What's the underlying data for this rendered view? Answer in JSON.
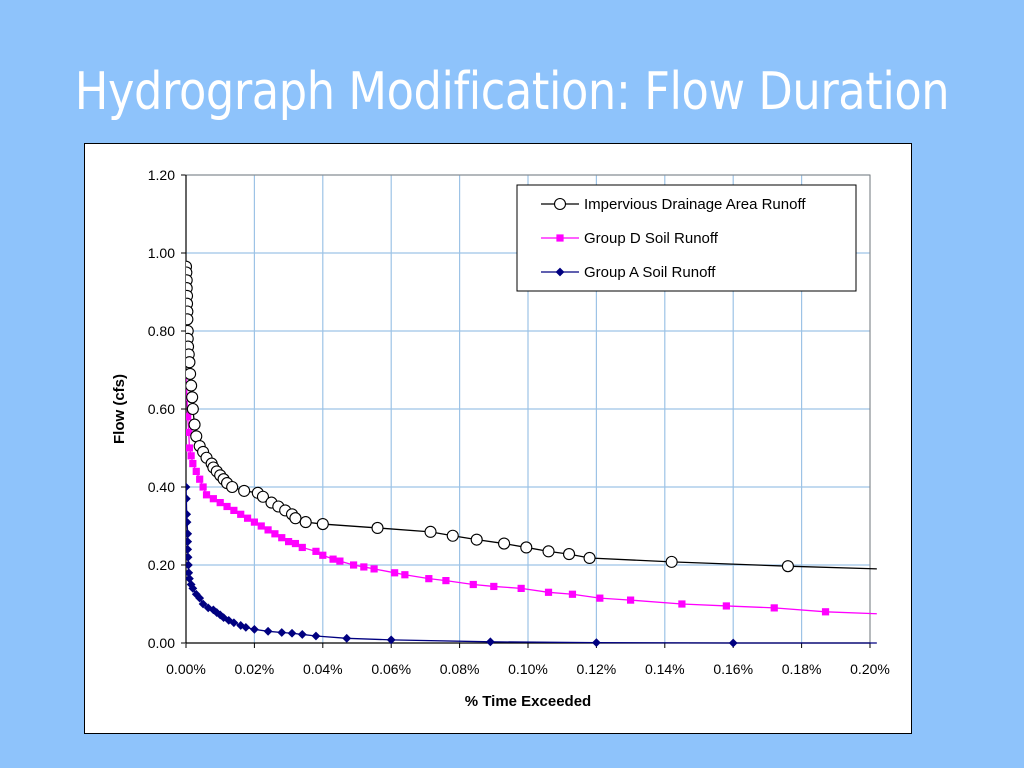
{
  "slide": {
    "title": "Hydrograph Modification: Flow Duration",
    "background": "#8EC3FB"
  },
  "chart_data": {
    "type": "line",
    "title": "",
    "xlabel": "% Time Exceeded",
    "ylabel": "Flow (cfs)",
    "xlim": [
      0,
      0.2
    ],
    "ylim": [
      0,
      1.2
    ],
    "x_unit": "percent",
    "x_ticks": [
      "0.00%",
      "0.02%",
      "0.04%",
      "0.06%",
      "0.08%",
      "0.10%",
      "0.12%",
      "0.14%",
      "0.16%",
      "0.18%",
      "0.20%"
    ],
    "y_ticks": [
      "0.00",
      "0.20",
      "0.40",
      "0.60",
      "0.80",
      "1.00",
      "1.20"
    ],
    "grid": true,
    "grid_color": "#9DC3E6",
    "legend_position": "top-right",
    "series": [
      {
        "name": "Impervious Drainage Area Runoff",
        "color": "#000000",
        "marker": "open-circle",
        "points": [
          [
            0.0,
            0.965
          ],
          [
            0.0001,
            0.95
          ],
          [
            0.0002,
            0.93
          ],
          [
            0.0002,
            0.91
          ],
          [
            0.0003,
            0.89
          ],
          [
            0.0003,
            0.87
          ],
          [
            0.0004,
            0.85
          ],
          [
            0.0004,
            0.83
          ],
          [
            0.0005,
            0.8
          ],
          [
            0.0005,
            0.78
          ],
          [
            0.0006,
            0.76
          ],
          [
            0.0008,
            0.74
          ],
          [
            0.001,
            0.72
          ],
          [
            0.0012,
            0.69
          ],
          [
            0.0015,
            0.66
          ],
          [
            0.0018,
            0.63
          ],
          [
            0.002,
            0.6
          ],
          [
            0.0025,
            0.56
          ],
          [
            0.003,
            0.53
          ],
          [
            0.004,
            0.505
          ],
          [
            0.005,
            0.49
          ],
          [
            0.006,
            0.475
          ],
          [
            0.0075,
            0.46
          ],
          [
            0.008,
            0.45
          ],
          [
            0.009,
            0.44
          ],
          [
            0.01,
            0.43
          ],
          [
            0.011,
            0.42
          ],
          [
            0.012,
            0.41
          ],
          [
            0.0135,
            0.4
          ],
          [
            0.017,
            0.39
          ],
          [
            0.021,
            0.385
          ],
          [
            0.0225,
            0.375
          ],
          [
            0.025,
            0.36
          ],
          [
            0.027,
            0.35
          ],
          [
            0.029,
            0.34
          ],
          [
            0.031,
            0.33
          ],
          [
            0.032,
            0.32
          ],
          [
            0.035,
            0.31
          ],
          [
            0.04,
            0.305
          ],
          [
            0.056,
            0.295
          ],
          [
            0.0715,
            0.285
          ],
          [
            0.078,
            0.275
          ],
          [
            0.085,
            0.265
          ],
          [
            0.093,
            0.255
          ],
          [
            0.0995,
            0.245
          ],
          [
            0.106,
            0.235
          ],
          [
            0.112,
            0.228
          ],
          [
            0.118,
            0.218
          ],
          [
            0.142,
            0.208
          ],
          [
            0.176,
            0.197
          ],
          [
            0.202,
            0.19
          ]
        ]
      },
      {
        "name": "Group D Soil Runoff",
        "color": "#FF00FF",
        "marker": "square",
        "points": [
          [
            0.0,
            0.685
          ],
          [
            0.0003,
            0.63
          ],
          [
            0.0005,
            0.58
          ],
          [
            0.0008,
            0.54
          ],
          [
            0.001,
            0.5
          ],
          [
            0.0015,
            0.48
          ],
          [
            0.002,
            0.46
          ],
          [
            0.003,
            0.44
          ],
          [
            0.004,
            0.42
          ],
          [
            0.005,
            0.4
          ],
          [
            0.006,
            0.38
          ],
          [
            0.008,
            0.37
          ],
          [
            0.01,
            0.36
          ],
          [
            0.012,
            0.35
          ],
          [
            0.014,
            0.34
          ],
          [
            0.016,
            0.33
          ],
          [
            0.018,
            0.32
          ],
          [
            0.02,
            0.31
          ],
          [
            0.022,
            0.3
          ],
          [
            0.024,
            0.29
          ],
          [
            0.026,
            0.28
          ],
          [
            0.028,
            0.27
          ],
          [
            0.03,
            0.26
          ],
          [
            0.032,
            0.255
          ],
          [
            0.034,
            0.245
          ],
          [
            0.038,
            0.235
          ],
          [
            0.04,
            0.225
          ],
          [
            0.043,
            0.215
          ],
          [
            0.045,
            0.21
          ],
          [
            0.049,
            0.2
          ],
          [
            0.052,
            0.195
          ],
          [
            0.055,
            0.19
          ],
          [
            0.061,
            0.18
          ],
          [
            0.064,
            0.175
          ],
          [
            0.071,
            0.165
          ],
          [
            0.076,
            0.16
          ],
          [
            0.084,
            0.15
          ],
          [
            0.09,
            0.145
          ],
          [
            0.098,
            0.14
          ],
          [
            0.106,
            0.13
          ],
          [
            0.113,
            0.125
          ],
          [
            0.121,
            0.115
          ],
          [
            0.13,
            0.11
          ],
          [
            0.145,
            0.1
          ],
          [
            0.158,
            0.095
          ],
          [
            0.172,
            0.09
          ],
          [
            0.187,
            0.08
          ],
          [
            0.202,
            0.075
          ]
        ]
      },
      {
        "name": "Group A Soil Runoff",
        "color": "#000080",
        "marker": "diamond",
        "points": [
          [
            0.0,
            0.4
          ],
          [
            0.0001,
            0.37
          ],
          [
            0.0002,
            0.33
          ],
          [
            0.0003,
            0.31
          ],
          [
            0.0005,
            0.28
          ],
          [
            0.0005,
            0.26
          ],
          [
            0.0005,
            0.24
          ],
          [
            0.0006,
            0.22
          ],
          [
            0.0007,
            0.2
          ],
          [
            0.0008,
            0.18
          ],
          [
            0.001,
            0.165
          ],
          [
            0.0015,
            0.15
          ],
          [
            0.002,
            0.14
          ],
          [
            0.003,
            0.125
          ],
          [
            0.004,
            0.115
          ],
          [
            0.005,
            0.1
          ],
          [
            0.0065,
            0.09
          ],
          [
            0.008,
            0.085
          ],
          [
            0.009,
            0.078
          ],
          [
            0.01,
            0.072
          ],
          [
            0.011,
            0.065
          ],
          [
            0.0125,
            0.058
          ],
          [
            0.014,
            0.052
          ],
          [
            0.016,
            0.045
          ],
          [
            0.0175,
            0.04
          ],
          [
            0.02,
            0.035
          ],
          [
            0.024,
            0.03
          ],
          [
            0.028,
            0.027
          ],
          [
            0.031,
            0.025
          ],
          [
            0.034,
            0.022
          ],
          [
            0.038,
            0.018
          ],
          [
            0.047,
            0.012
          ],
          [
            0.06,
            0.008
          ],
          [
            0.089,
            0.003
          ],
          [
            0.12,
            0.001
          ],
          [
            0.16,
            0.0
          ],
          [
            0.202,
            0.0
          ]
        ]
      }
    ]
  }
}
